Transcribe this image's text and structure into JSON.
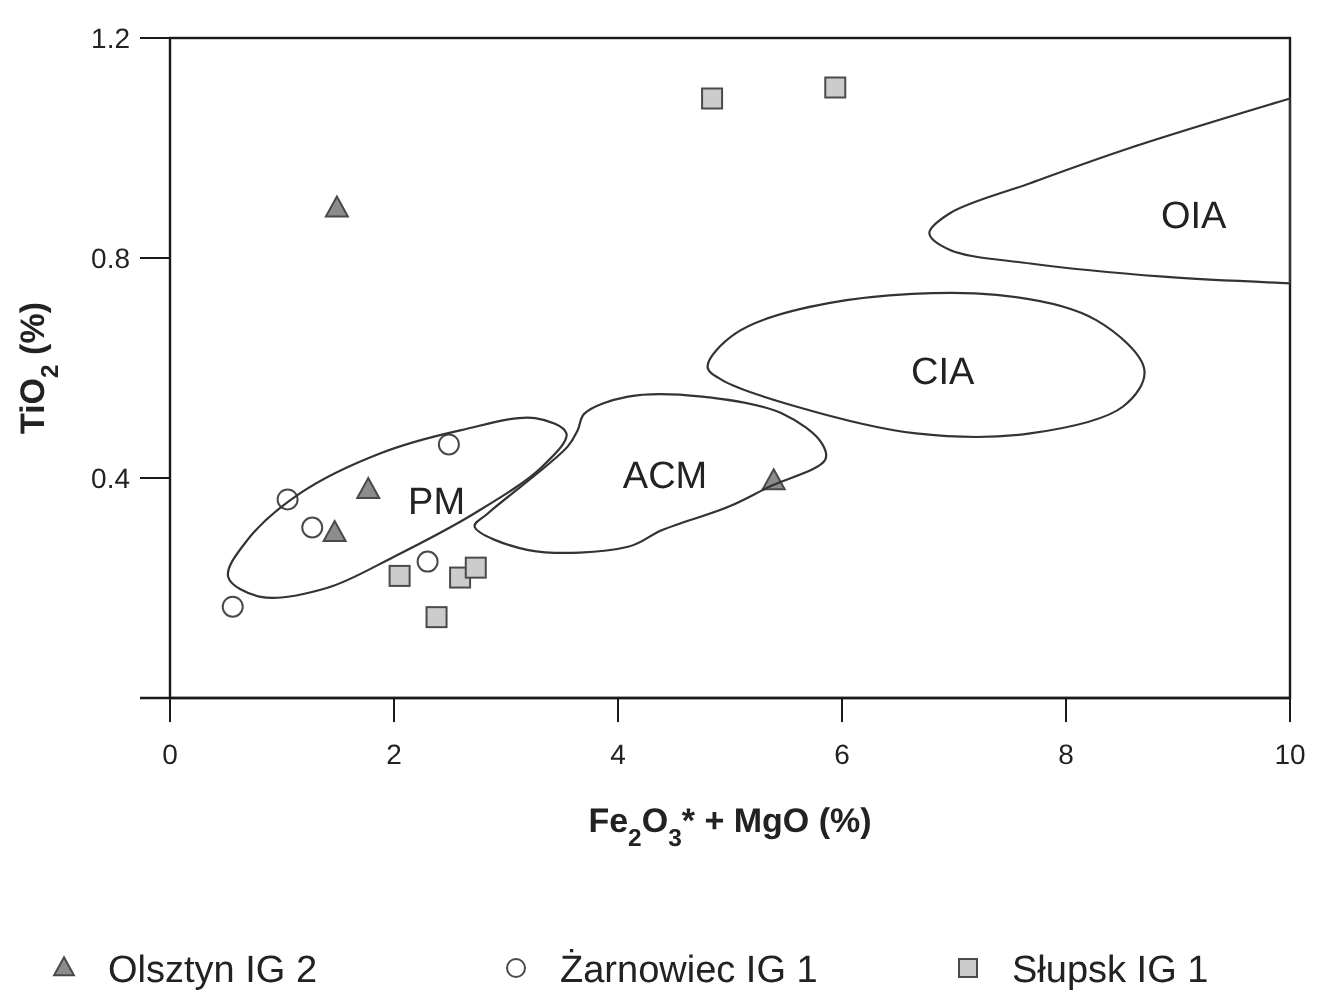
{
  "chart_data": {
    "type": "scatter",
    "xlabel": "Fe$_{2}$O$_{3}$* + MgO (%)",
    "ylabel": "TiO$_{2}$ (%)",
    "xlim": [
      0,
      10
    ],
    "ylim": [
      0,
      1.2
    ],
    "xticks": [
      0,
      2,
      4,
      6,
      8,
      10
    ],
    "yticks": [
      {
        "value": 0,
        "label": null
      },
      0.4,
      0.8,
      1.2
    ],
    "grid": false,
    "legend": "bottom",
    "series": [
      {
        "name": "Olsztyn IG 2",
        "marker": "triangle",
        "color": "#8c8c8c",
        "x": [
          1.49,
          1.77,
          1.47,
          5.39
        ],
        "values": [
          0.89,
          0.378,
          0.3,
          0.394
        ]
      },
      {
        "name": "Żarnowiec IG 1",
        "marker": "circle",
        "color": "#ffffff",
        "x": [
          0.56,
          1.05,
          1.27,
          2.49,
          2.3
        ],
        "values": [
          0.166,
          0.361,
          0.31,
          0.461,
          0.248
        ]
      },
      {
        "name": "Słupsk IG 1",
        "marker": "square",
        "color": "#cccccc",
        "x": [
          2.05,
          2.59,
          2.73,
          2.38,
          4.84,
          5.94
        ],
        "values": [
          0.222,
          0.219,
          0.237,
          0.147,
          1.09,
          1.11
        ]
      }
    ],
    "annotations": [
      "PM",
      "ACM",
      "CIA",
      "OIA"
    ]
  }
}
